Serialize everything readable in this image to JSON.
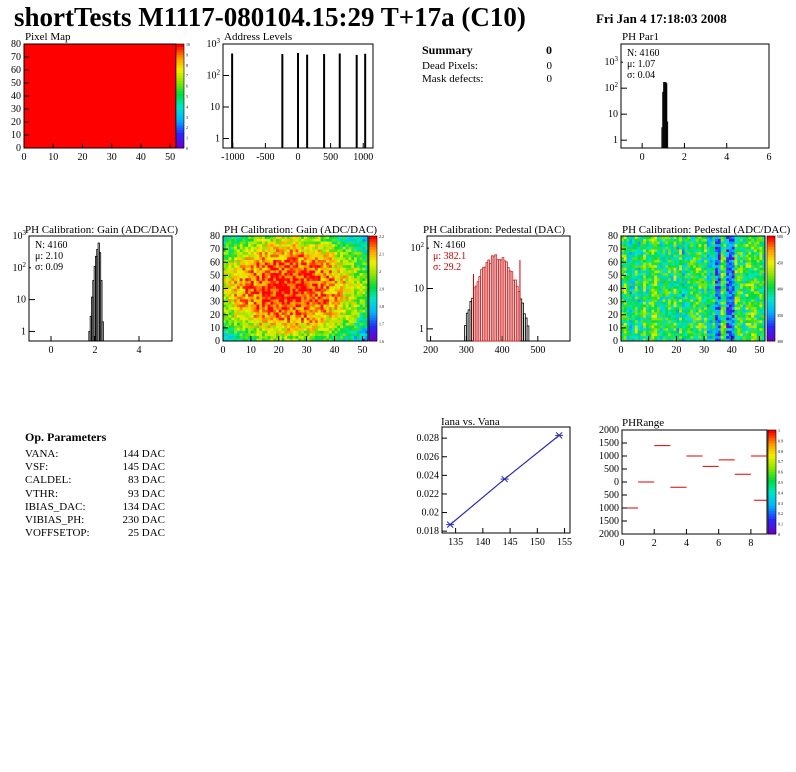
{
  "header": {
    "title": "shortTests M1117-080104.15:29 T+17a (C10)",
    "date": "Fri Jan  4 17:18:03 2008"
  },
  "summary": {
    "title": "Summary",
    "title_value": "0",
    "rows": [
      {
        "label": "Dead Pixels:",
        "value": "0"
      },
      {
        "label": "Mask defects:",
        "value": "0"
      }
    ]
  },
  "op_params": {
    "title": "Op. Parameters",
    "rows": [
      {
        "label": "VANA:",
        "value": "144 DAC"
      },
      {
        "label": "VSF:",
        "value": "145 DAC"
      },
      {
        "label": "CALDEL:",
        "value": "83 DAC"
      },
      {
        "label": "VTHR:",
        "value": "93 DAC"
      },
      {
        "label": "IBIAS_DAC:",
        "value": "134 DAC"
      },
      {
        "label": "VIBIAS_PH:",
        "value": "230 DAC"
      },
      {
        "label": "VOFFSETOP:",
        "value": "25 DAC"
      }
    ]
  },
  "chart_data": [
    {
      "id": "pixel-map",
      "type": "heatmap",
      "title": "Pixel Map",
      "xlim": [
        0,
        52
      ],
      "ylim": [
        0,
        80
      ],
      "xticks": [
        "0",
        "10",
        "20",
        "30",
        "40",
        "50"
      ],
      "yticks": [
        "0",
        "10",
        "20",
        "30",
        "40",
        "50",
        "60",
        "70",
        "80"
      ],
      "fill_color": "#ff0000",
      "uniform_value": 10,
      "zticks": [
        "0",
        "1",
        "2",
        "3",
        "4",
        "5",
        "6",
        "7",
        "8",
        "9",
        "10"
      ]
    },
    {
      "id": "address-levels",
      "type": "histogram",
      "title": "Address Levels",
      "xlim": [
        -1150,
        1150
      ],
      "ylim_log": [
        0.5,
        1000
      ],
      "log_y": true,
      "xticks": [
        "-1000",
        "-500",
        "0",
        "500",
        "1000"
      ],
      "yticks": [
        "1",
        "10",
        "10^2",
        "10^3"
      ],
      "peaks": [
        {
          "x": -1010,
          "y": 500
        },
        {
          "x": -240,
          "y": 480
        },
        {
          "x": 0,
          "y": 520
        },
        {
          "x": 140,
          "y": 460
        },
        {
          "x": 400,
          "y": 480
        },
        {
          "x": 640,
          "y": 500
        },
        {
          "x": 900,
          "y": 450
        },
        {
          "x": 1030,
          "y": 490
        }
      ]
    },
    {
      "id": "ph-par1",
      "type": "histogram",
      "title": "PH Par1",
      "xlim": [
        -1,
        6
      ],
      "ylim_log": [
        0.5,
        5000
      ],
      "log_y": true,
      "xticks": [
        "0",
        "2",
        "4",
        "6"
      ],
      "yticks": [
        "1",
        "10",
        "10^2",
        "10^3"
      ],
      "stats": {
        "n": "N: 4160",
        "mu": "μ: 1.07",
        "sigma": "σ: 0.04"
      },
      "bins": [
        [
          0.93,
          3
        ],
        [
          0.97,
          70
        ],
        [
          1.01,
          900
        ],
        [
          1.05,
          2400
        ],
        [
          1.09,
          1400
        ],
        [
          1.13,
          150
        ],
        [
          1.17,
          5
        ]
      ]
    },
    {
      "id": "ph-gain-hist",
      "type": "histogram",
      "title": "PH Calibration: Gain (ADC/DAC)",
      "xlim": [
        -1,
        5.5
      ],
      "ylim_log": [
        0.5,
        1000
      ],
      "log_y": true,
      "xticks": [
        "0",
        "2",
        "4"
      ],
      "yticks": [
        "1",
        "10",
        "10^2",
        "10^3"
      ],
      "stats": {
        "n": "N: 4160",
        "mu": "μ: 2.10",
        "sigma": "σ: 0.09"
      },
      "bins": [
        [
          1.72,
          1
        ],
        [
          1.78,
          3
        ],
        [
          1.84,
          12
        ],
        [
          1.9,
          40
        ],
        [
          1.96,
          110
        ],
        [
          2.02,
          230
        ],
        [
          2.08,
          380
        ],
        [
          2.14,
          600
        ],
        [
          2.2,
          300
        ],
        [
          2.26,
          40
        ],
        [
          2.32,
          2
        ]
      ]
    },
    {
      "id": "ph-gain-map",
      "type": "heatmap",
      "title": "PH Calibration: Gain (ADC/DAC)",
      "xlim": [
        0,
        52
      ],
      "ylim": [
        0,
        80
      ],
      "xticks": [
        "0",
        "10",
        "20",
        "30",
        "40",
        "50"
      ],
      "yticks": [
        "0",
        "10",
        "20",
        "30",
        "40",
        "50",
        "60",
        "70",
        "80"
      ],
      "zticks": [
        "1.6",
        "1.7",
        "1.8",
        "1.9",
        "2",
        "2.1",
        "2.2"
      ]
    },
    {
      "id": "ph-pedestal-hist",
      "type": "histogram",
      "title": "PH Calibration: Pedestal (DAC)",
      "xlim": [
        190,
        590
      ],
      "ylim_log": [
        0.5,
        200
      ],
      "log_y": true,
      "xticks": [
        "200",
        "300",
        "400",
        "500"
      ],
      "yticks": [
        "1",
        "10",
        "10^2"
      ],
      "stats": {
        "n": "N: 4160",
        "mu": "μ: 382.1",
        "sigma": "σ: 29.2"
      },
      "mean": 382.1,
      "sigma": 29.2,
      "peak": 60,
      "markers": [
        320,
        450
      ]
    },
    {
      "id": "ph-pedestal-map",
      "type": "heatmap",
      "title": "PH Calibration: Pedestal (ADC/DAC)",
      "xlim": [
        0,
        52
      ],
      "ylim": [
        0,
        80
      ],
      "xticks": [
        "0",
        "10",
        "20",
        "30",
        "40",
        "50"
      ],
      "yticks": [
        "0",
        "10",
        "20",
        "30",
        "40",
        "50",
        "60",
        "70",
        "80"
      ],
      "zticks": [
        "300",
        "350",
        "400",
        "450",
        "500"
      ]
    },
    {
      "id": "iana-vana",
      "type": "line",
      "title": "Iana vs. Vana",
      "xlim": [
        132.5,
        156
      ],
      "ylim": [
        0.0178,
        0.0292
      ],
      "xticks": [
        "135",
        "140",
        "145",
        "150",
        "155"
      ],
      "yticks": [
        "0.018",
        "0.02",
        "0.022",
        "0.024",
        "0.026",
        "0.028"
      ],
      "x": [
        134,
        144,
        154
      ],
      "y": [
        0.0187,
        0.0236,
        0.0283
      ],
      "color": "#2b2bb0"
    },
    {
      "id": "ph-range",
      "type": "scatter",
      "title": "PHRange",
      "xlim": [
        0,
        9
      ],
      "ylim": [
        -2000,
        2000
      ],
      "xticks": [
        "0",
        "2",
        "4",
        "6",
        "8"
      ],
      "yticks": [
        "2000",
        "1500",
        "1000",
        "500",
        "0",
        "500",
        "1000",
        "1500",
        "2000"
      ],
      "segments": [
        {
          "x": 0,
          "y": -1000
        },
        {
          "x": 1,
          "y": 0
        },
        {
          "x": 2,
          "y": 1400
        },
        {
          "x": 3,
          "y": -200
        },
        {
          "x": 4,
          "y": 1000
        },
        {
          "x": 5,
          "y": 600
        },
        {
          "x": 6,
          "y": 850
        },
        {
          "x": 7,
          "y": 300
        },
        {
          "x": 8,
          "y": 1000
        },
        {
          "x": 8.2,
          "y": -700
        }
      ],
      "color": "#dd0000",
      "zticks": [
        "0",
        "0.1",
        "0.2",
        "0.3",
        "0.4",
        "0.5",
        "0.6",
        "0.7",
        "0.8",
        "0.9",
        "1"
      ]
    }
  ]
}
